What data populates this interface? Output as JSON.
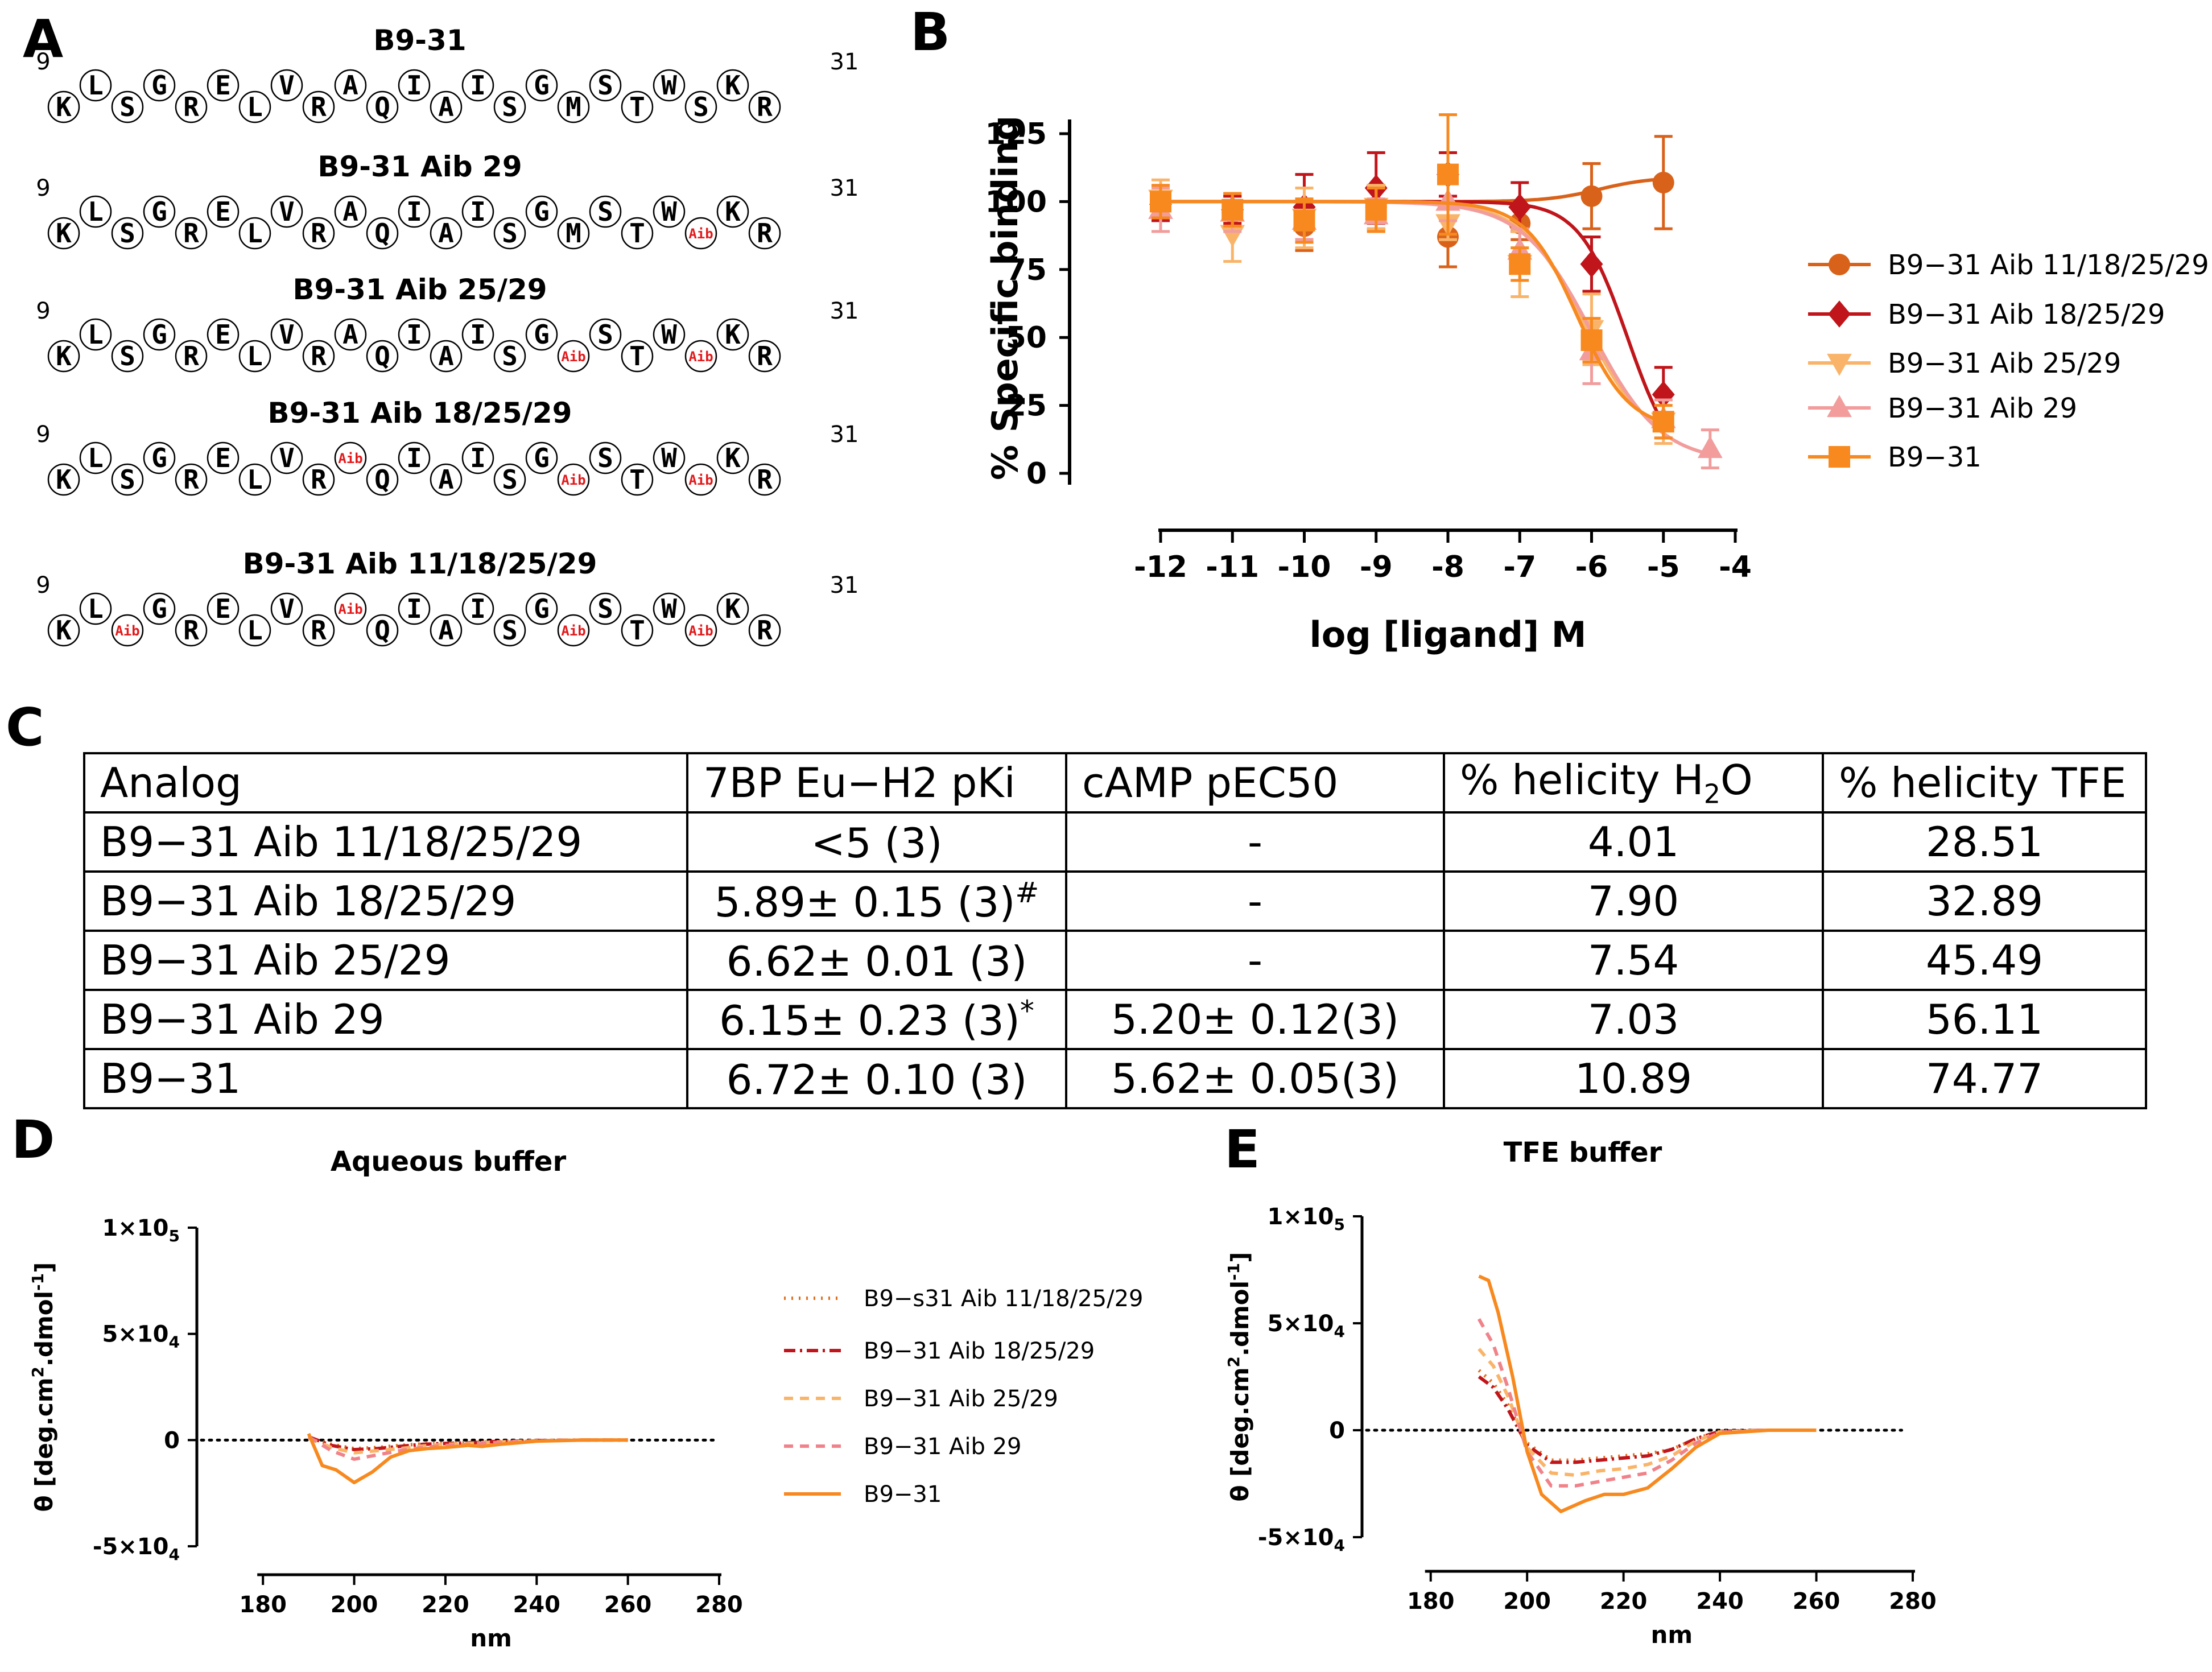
{
  "panels": {
    "A": "A",
    "B": "B",
    "C": "C",
    "D": "D",
    "E": "E"
  },
  "panel_a": {
    "peptides": [
      {
        "title": "B9-31",
        "residues": [
          "K",
          "L",
          "S",
          "G",
          "R",
          "E",
          "L",
          "V",
          "R",
          "A",
          "Q",
          "I",
          "A",
          "I",
          "S",
          "G",
          "M",
          "S",
          "T",
          "W",
          "S",
          "K",
          "R"
        ]
      },
      {
        "title": "B9-31 Aib 29",
        "residues": [
          "K",
          "L",
          "S",
          "G",
          "R",
          "E",
          "L",
          "V",
          "R",
          "A",
          "Q",
          "I",
          "A",
          "I",
          "S",
          "G",
          "M",
          "S",
          "T",
          "W",
          "Aib",
          "K",
          "R"
        ]
      },
      {
        "title": "B9-31 Aib 25/29",
        "residues": [
          "K",
          "L",
          "S",
          "G",
          "R",
          "E",
          "L",
          "V",
          "R",
          "A",
          "Q",
          "I",
          "A",
          "I",
          "S",
          "G",
          "Aib",
          "S",
          "T",
          "W",
          "Aib",
          "K",
          "R"
        ]
      },
      {
        "title": "B9-31 Aib 18/25/29",
        "residues": [
          "K",
          "L",
          "S",
          "G",
          "R",
          "E",
          "L",
          "V",
          "R",
          "Aib",
          "Q",
          "I",
          "A",
          "I",
          "S",
          "G",
          "Aib",
          "S",
          "T",
          "W",
          "Aib",
          "K",
          "R"
        ]
      },
      {
        "title": "B9-31 Aib  11/18/25/29",
        "residues": [
          "K",
          "L",
          "Aib",
          "G",
          "R",
          "E",
          "L",
          "V",
          "R",
          "Aib",
          "Q",
          "I",
          "A",
          "I",
          "S",
          "G",
          "Aib",
          "S",
          "T",
          "W",
          "Aib",
          "K",
          "R"
        ]
      }
    ],
    "start_label": "9",
    "end_label": "31"
  },
  "table": {
    "headers": [
      "Analog",
      "7BP Eu−H2 pKi",
      "cAMP pEC50",
      "% helicity H",
      "2",
      "O",
      "% helicity TFE"
    ],
    "rows": [
      {
        "analog": "B9−31 Aib 11/18/25/29",
        "pki": "<5 (3)",
        "pki_mark": "",
        "pec50": "-",
        "h2o": "4.01",
        "tfe": "28.51"
      },
      {
        "analog": "B9−31 Aib 18/25/29",
        "pki": "5.89± 0.15 (3)",
        "pki_mark": "#",
        "pec50": "-",
        "h2o": "7.90",
        "tfe": "32.89"
      },
      {
        "analog": "B9−31 Aib 25/29",
        "pki": "6.62± 0.01 (3)",
        "pki_mark": "",
        "pec50": "-",
        "h2o": "7.54",
        "tfe": "45.49"
      },
      {
        "analog": "B9−31 Aib 29",
        "pki": "6.15± 0.23 (3)",
        "pki_mark": "*",
        "pec50": "5.20± 0.12(3)",
        "h2o": "7.03",
        "tfe": "56.11"
      },
      {
        "analog": "B9−31",
        "pki": "6.72± 0.10 (3)",
        "pki_mark": "",
        "pec50": "5.62± 0.05(3)",
        "h2o": "10.89",
        "tfe": "74.77"
      }
    ]
  },
  "chart_data": [
    {
      "panel": "B",
      "type": "scatter",
      "title": "",
      "xlabel": "log [ligand] M",
      "ylabel": "% Specific binding",
      "xlim": [
        -12,
        -4
      ],
      "ylim": [
        0,
        125
      ],
      "x_ticks": [
        "-12",
        "-11",
        "-10",
        "-9",
        "-8",
        "-7",
        "-6",
        "-5",
        "-4"
      ],
      "y_ticks": [
        "0",
        "25",
        "50",
        "75",
        "100",
        "125"
      ],
      "series": [
        {
          "name": "B9−31 Aib 11/18/25/29",
          "color": "#d9621a",
          "marker": "circle",
          "x": [
            -12,
            -11,
            -10,
            -9,
            -8,
            -7,
            -6,
            -5
          ],
          "y": [
            100,
            96,
            91,
            98,
            87,
            92,
            102,
            107
          ],
          "err": [
            5,
            6,
            9,
            8,
            11,
            6,
            12,
            17
          ],
          "fit": "flat",
          "fit_top": 100,
          "fit_bottom": 109,
          "fit_logec50": -5.9,
          "fit_hill": 1.2
        },
        {
          "name": "B9−31 Aib 18/25/29",
          "color": "#c0151a",
          "marker": "diamond",
          "x": [
            -12,
            -11,
            -10,
            -9,
            -8,
            -7,
            -6,
            -5
          ],
          "y": [
            99,
            97,
            98,
            105,
            110,
            98,
            77,
            29
          ],
          "err": [
            6,
            5,
            12,
            13,
            8,
            9,
            10,
            10
          ],
          "fit": "sigmoid",
          "fit_top": 100,
          "fit_bottom": 0,
          "fit_logec50": -5.5,
          "fit_hill": 1.3
        },
        {
          "name": "B9−31 Aib 25/29",
          "color": "#f9b46a",
          "marker": "triangle-down",
          "x": [
            -12,
            -11,
            -10,
            -9,
            -8,
            -7,
            -6,
            -5
          ],
          "y": [
            101,
            88,
            94,
            98,
            92,
            77,
            53,
            19
          ],
          "err": [
            7,
            10,
            11,
            8,
            6,
            12,
            13,
            8
          ],
          "fit": "sigmoid",
          "fit_top": 100,
          "fit_bottom": 10,
          "fit_logec50": -6.1,
          "fit_hill": 1.0
        },
        {
          "name": "B9−31 Aib 29",
          "color": "#f29c9c",
          "marker": "triangle-up",
          "x": [
            -12,
            -11,
            -10,
            -9,
            -8,
            -7,
            -6,
            -5,
            -4.35
          ],
          "y": [
            97,
            96,
            93,
            95,
            100,
            82,
            45,
            20,
            9
          ],
          "err": [
            8,
            7,
            7,
            6,
            7,
            8,
            12,
            7,
            7
          ],
          "fit": "sigmoid",
          "fit_top": 100,
          "fit_bottom": 4,
          "fit_logec50": -6.0,
          "fit_hill": 0.9
        },
        {
          "name": "B9−31",
          "color": "#f7891f",
          "marker": "square",
          "x": [
            -12,
            -11,
            -10,
            -9,
            -8,
            -7,
            -6,
            -5
          ],
          "y": [
            100,
            97,
            93,
            97,
            110,
            77,
            49,
            19
          ],
          "err": [
            6,
            6,
            8,
            8,
            22,
            6,
            8,
            6
          ],
          "fit": "sigmoid",
          "fit_top": 100,
          "fit_bottom": 16,
          "fit_logec50": -6.2,
          "fit_hill": 1.2
        }
      ]
    },
    {
      "panel": "D",
      "type": "line",
      "title": "Aqueous buffer",
      "xlabel": "nm",
      "ylabel": "θ [deg.cm",
      "ylabel_sup1": "2",
      "ylabel_mid": ".dmol",
      "ylabel_sup2": "-1",
      "ylabel_end": "]",
      "xlim": [
        170,
        280
      ],
      "ylim": [
        -50000,
        100000
      ],
      "x_ticks": [
        "180",
        "200",
        "220",
        "240",
        "260",
        "280"
      ],
      "y_ticks": [
        {
          "base": "-5×10",
          "exp": "4"
        },
        {
          "base": "0",
          "exp": ""
        },
        {
          "base": "5×10",
          "exp": "4"
        },
        {
          "base": "1×10",
          "exp": "5"
        }
      ],
      "series": [
        {
          "name": "B9−s31 Aib 11/18/25/29",
          "color": "#e0701f",
          "dash": "3,10",
          "x": [
            190,
            195,
            200,
            205,
            210,
            215,
            220,
            225,
            230,
            240,
            250,
            260
          ],
          "y": [
            1000,
            -2000,
            -4000,
            -3500,
            -2500,
            -1800,
            -1500,
            -1200,
            -800,
            -200,
            0,
            0
          ]
        },
        {
          "name": "B9−31 Aib 18/25/29",
          "color": "#c0151a",
          "dash": "20,8,4,8",
          "x": [
            190,
            195,
            200,
            205,
            210,
            215,
            220,
            225,
            230,
            240,
            250,
            260
          ],
          "y": [
            1500,
            -2500,
            -4500,
            -4000,
            -3000,
            -2000,
            -1600,
            -1300,
            -800,
            -200,
            0,
            0
          ]
        },
        {
          "name": "B9−31 Aib 25/29",
          "color": "#f9b46a",
          "dash": "16,12",
          "x": [
            190,
            195,
            200,
            205,
            210,
            215,
            220,
            225,
            230,
            240,
            250,
            260
          ],
          "y": [
            1000,
            -3500,
            -6000,
            -5000,
            -4000,
            -2800,
            -2000,
            -1600,
            -1000,
            -300,
            0,
            0
          ]
        },
        {
          "name": "B9−31 Aib 29",
          "color": "#f0838a",
          "dash": "16,12",
          "x": [
            190,
            195,
            200,
            205,
            210,
            215,
            220,
            225,
            230,
            240,
            250,
            260
          ],
          "y": [
            1500,
            -5000,
            -9000,
            -7000,
            -5000,
            -3500,
            -2500,
            -2000,
            -1300,
            -400,
            0,
            0
          ]
        },
        {
          "name": "B9−31",
          "color": "#f7891f",
          "dash": "",
          "x": [
            190,
            193,
            196,
            200,
            204,
            208,
            212,
            216,
            220,
            225,
            228,
            232,
            240,
            250,
            260
          ],
          "y": [
            3000,
            -12000,
            -14000,
            -20000,
            -15000,
            -8000,
            -5000,
            -4000,
            -3500,
            -2500,
            -3000,
            -2000,
            -500,
            0,
            0
          ]
        }
      ]
    },
    {
      "panel": "E",
      "type": "line",
      "title": "TFE buffer",
      "xlabel": "nm",
      "ylabel": "θ [deg.cm",
      "ylabel_sup1": "2",
      "ylabel_mid": ".dmol",
      "ylabel_sup2": "-1",
      "ylabel_end": "]",
      "xlim": [
        170,
        280
      ],
      "ylim": [
        -50000,
        100000
      ],
      "x_ticks": [
        "180",
        "200",
        "220",
        "240",
        "260",
        "280"
      ],
      "y_ticks": [
        {
          "base": "-5×10",
          "exp": "4"
        },
        {
          "base": "0",
          "exp": ""
        },
        {
          "base": "5×10",
          "exp": "4"
        },
        {
          "base": "1×10",
          "exp": "5"
        }
      ],
      "series": [
        {
          "name": "B9−s31 Aib 11/18/25/29",
          "color": "#e0701f",
          "dash": "3,10",
          "x": [
            190,
            193,
            196,
            200,
            205,
            210,
            215,
            220,
            225,
            230,
            235,
            240,
            250,
            260
          ],
          "y": [
            28000,
            22000,
            12000,
            -6000,
            -14000,
            -14000,
            -13000,
            -12000,
            -11000,
            -9000,
            -4000,
            -500,
            0,
            0
          ]
        },
        {
          "name": "B9−31 Aib 18/25/29",
          "color": "#c0151a",
          "dash": "20,8,4,8",
          "x": [
            190,
            193,
            196,
            200,
            205,
            210,
            215,
            220,
            225,
            230,
            235,
            240,
            250,
            260
          ],
          "y": [
            25000,
            20000,
            10000,
            -7000,
            -15000,
            -15000,
            -14000,
            -13000,
            -12000,
            -9000,
            -4000,
            -500,
            0,
            0
          ]
        },
        {
          "name": "B9−31 Aib 25/29",
          "color": "#f9b46a",
          "dash": "16,12",
          "x": [
            190,
            193,
            196,
            200,
            205,
            210,
            215,
            220,
            225,
            230,
            235,
            240,
            250,
            260
          ],
          "y": [
            38000,
            30000,
            16000,
            -8000,
            -20000,
            -21000,
            -19000,
            -18000,
            -16000,
            -12000,
            -5000,
            -800,
            0,
            0
          ]
        },
        {
          "name": "B9−31 Aib 29",
          "color": "#f0838a",
          "dash": "16,12",
          "x": [
            190,
            193,
            196,
            200,
            205,
            210,
            215,
            220,
            225,
            230,
            235,
            240,
            250,
            260
          ],
          "y": [
            52000,
            40000,
            20000,
            -10000,
            -26000,
            -26000,
            -24000,
            -22000,
            -20000,
            -14000,
            -6000,
            -1000,
            0,
            0
          ]
        },
        {
          "name": "B9−31",
          "color": "#f7891f",
          "dash": "",
          "x": [
            190,
            192,
            194,
            197,
            200,
            203,
            207,
            212,
            216,
            220,
            225,
            230,
            235,
            240,
            250,
            260
          ],
          "y": [
            72000,
            70000,
            55000,
            25000,
            -10000,
            -30000,
            -38000,
            -33000,
            -30000,
            -30000,
            -27000,
            -18000,
            -8000,
            -1500,
            0,
            0
          ]
        }
      ]
    }
  ]
}
